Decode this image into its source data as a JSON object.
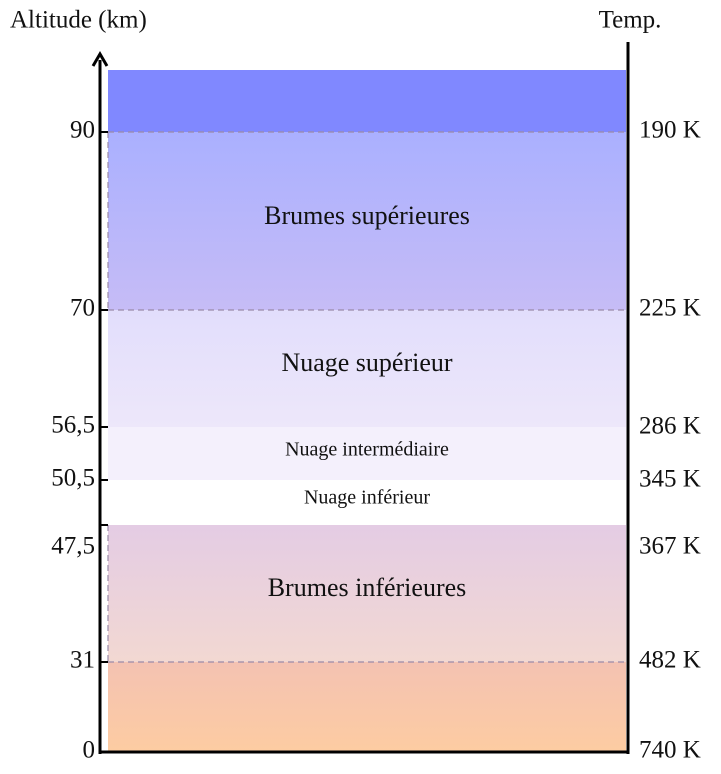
{
  "axes": {
    "left_label": "Altitude (km)",
    "right_label": "Temp."
  },
  "altitudes": [
    "90",
    "70",
    "56,5",
    "50,5",
    "47,5",
    "31",
    "0"
  ],
  "temperatures": [
    "190 K",
    "225 K",
    "286 K",
    "345 K",
    "367 K",
    "482 K",
    "740 K"
  ],
  "layers": [
    "Brumes supérieures",
    "Nuage supérieur",
    "Nuage intermédiaire",
    "Nuage inférieur",
    "Brumes inférieures"
  ]
}
